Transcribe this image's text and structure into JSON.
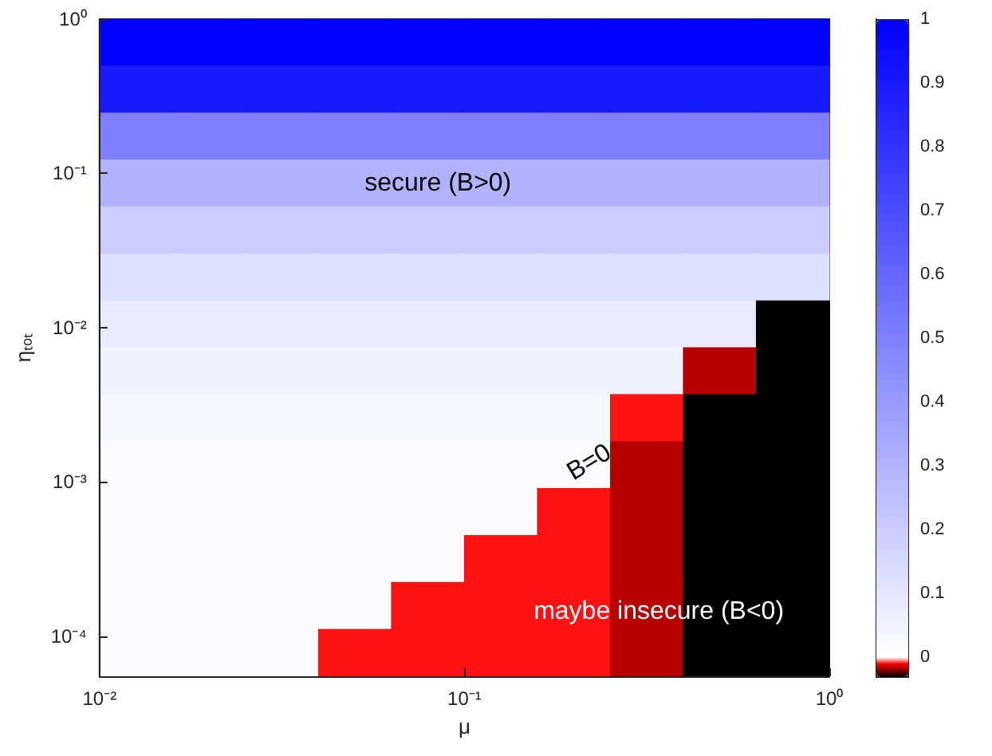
{
  "chart_data": {
    "type": "heatmap",
    "xlabel": "μ",
    "ylabel": "ηₜₒₜ",
    "log": "xy",
    "xlim": [
      0.01,
      1
    ],
    "xticks": [
      {
        "value": 0.01,
        "label": "10⁻²"
      },
      {
        "value": 0.1,
        "label": "10⁻¹"
      },
      {
        "value": 1,
        "label": "10⁰"
      }
    ],
    "ylim": [
      5.5e-05,
      1
    ],
    "yticks": [
      {
        "value": 0.0001,
        "label": "10⁻⁴"
      },
      {
        "value": 0.001,
        "label": "10⁻³"
      },
      {
        "value": 0.01,
        "label": "10⁻²"
      },
      {
        "value": 0.1,
        "label": "10⁻¹"
      },
      {
        "value": 1,
        "label": "10⁰"
      }
    ],
    "clim": [
      -0.03,
      1
    ],
    "cticks": [
      {
        "value": 0,
        "label": "0"
      },
      {
        "value": 0.1,
        "label": "0.1"
      },
      {
        "value": 0.2,
        "label": "0.2"
      },
      {
        "value": 0.3,
        "label": "0.3"
      },
      {
        "value": 0.4,
        "label": "0.4"
      },
      {
        "value": 0.5,
        "label": "0.5"
      },
      {
        "value": 0.6,
        "label": "0.6"
      },
      {
        "value": 0.7,
        "label": "0.7"
      },
      {
        "value": 0.8,
        "label": "0.8"
      },
      {
        "value": 0.9,
        "label": "0.9"
      },
      {
        "value": 1,
        "label": "1"
      }
    ],
    "annotations": [
      "secure (B>0)",
      "B=0",
      "maybe insecure (B<0)"
    ],
    "cells": [
      [
        1,
        1,
        1,
        1,
        1,
        1,
        1,
        1,
        1,
        1
      ],
      [
        0.9,
        0.9,
        0.9,
        0.9,
        0.9,
        0.9,
        0.9,
        0.9,
        0.9,
        0.9
      ],
      [
        0.5,
        0.5,
        0.5,
        0.5,
        0.5,
        0.5,
        0.5,
        0.5,
        0.5,
        0.5
      ],
      [
        0.3,
        0.3,
        0.3,
        0.3,
        0.3,
        0.3,
        0.3,
        0.3,
        0.3,
        0.3
      ],
      [
        0.2,
        0.2,
        0.2,
        0.2,
        0.2,
        0.2,
        0.2,
        0.2,
        0.2,
        0.2
      ],
      [
        0.12,
        0.12,
        0.12,
        0.12,
        0.12,
        0.12,
        0.12,
        0.12,
        0.12,
        0.12
      ],
      [
        0.08,
        0.08,
        0.08,
        0.08,
        0.08,
        0.08,
        0.08,
        0.08,
        0.08,
        -0.03
      ],
      [
        0.05,
        0.05,
        0.05,
        0.05,
        0.05,
        0.05,
        0.05,
        0.05,
        -0.015,
        -0.03
      ],
      [
        0.03,
        0.03,
        0.03,
        0.03,
        0.03,
        0.03,
        0.03,
        -0.005,
        -0.03,
        -0.03
      ],
      [
        0.02,
        0.02,
        0.02,
        0.02,
        0.02,
        0.02,
        0.02,
        -0.015,
        -0.03,
        -0.03
      ],
      [
        0.02,
        0.02,
        0.02,
        0.02,
        0.02,
        0.02,
        -0.005,
        -0.015,
        -0.03,
        -0.03
      ],
      [
        0.01,
        0.01,
        0.01,
        0.01,
        0.01,
        -0.005,
        -0.005,
        -0.015,
        -0.03,
        -0.03
      ],
      [
        0.01,
        0.01,
        0.01,
        0.01,
        -0.005,
        -0.005,
        -0.005,
        -0.015,
        -0.03,
        -0.03
      ],
      [
        0.01,
        0.01,
        0.01,
        -0.005,
        -0.005,
        -0.005,
        -0.005,
        -0.015,
        -0.03,
        -0.03
      ]
    ]
  }
}
